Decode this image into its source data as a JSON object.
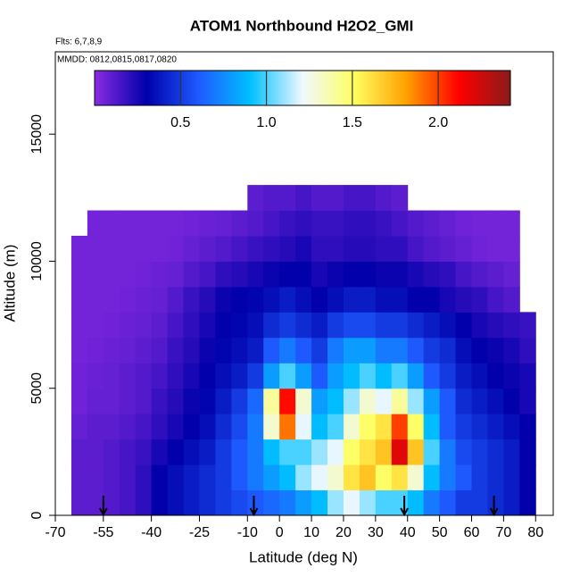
{
  "chart_data": {
    "type": "heatmap",
    "title": "ATOM1 Northbound H2O2_GMI",
    "annotations": [
      "Flts: 6,7,8,9",
      "MMDD: 0812,0815,0817,0820"
    ],
    "xlabel": "Latitude (deg N)",
    "ylabel": "Altitude (m)",
    "xlim": [
      -70,
      85.5
    ],
    "ylim": [
      0,
      18240
    ],
    "xticks": [
      -70,
      -55,
      -40,
      -25,
      -10,
      0,
      10,
      20,
      30,
      40,
      50,
      60,
      70,
      80
    ],
    "yticks": [
      0,
      5000,
      10000,
      15000
    ],
    "lat_bins": [
      -65,
      -60,
      -55,
      -50,
      -45,
      -40,
      -35,
      -30,
      -25,
      -20,
      -15,
      -10,
      -5,
      0,
      5,
      10,
      15,
      20,
      25,
      30,
      35,
      40,
      45,
      50,
      55,
      60,
      65,
      70,
      75,
      80
    ],
    "alt_bins": [
      0,
      1000,
      2000,
      3000,
      4000,
      5000,
      6000,
      7000,
      8000,
      9000,
      10000,
      11000,
      12000,
      13000
    ],
    "values": [
      [
        0.1,
        0.1,
        0.12,
        0.15,
        0.2,
        0.3,
        0.35,
        0.4,
        0.45,
        0.5,
        0.55,
        0.6,
        0.65,
        0.7,
        0.8,
        0.9,
        1.1,
        1.2,
        1.1,
        1.0,
        1.0,
        0.9,
        0.7,
        0.6,
        0.5,
        0.5,
        0.45,
        0.4,
        0.3
      ],
      [
        0.1,
        0.1,
        0.12,
        0.15,
        0.2,
        0.3,
        0.35,
        0.4,
        0.45,
        0.5,
        0.6,
        0.7,
        0.8,
        0.9,
        1.1,
        1.2,
        1.3,
        1.6,
        1.7,
        1.5,
        1.6,
        1.3,
        0.9,
        0.7,
        0.6,
        0.5,
        0.45,
        0.4,
        0.3
      ],
      [
        0.1,
        0.1,
        0.12,
        0.15,
        0.18,
        0.25,
        0.3,
        0.35,
        0.4,
        0.5,
        0.6,
        0.7,
        0.9,
        1.0,
        1.0,
        1.1,
        1.2,
        1.5,
        1.6,
        1.7,
        2.2,
        1.7,
        1.0,
        0.7,
        0.55,
        0.5,
        0.45,
        0.4,
        0.3
      ],
      [
        0.08,
        0.1,
        0.1,
        0.12,
        0.15,
        0.2,
        0.25,
        0.3,
        0.35,
        0.45,
        0.55,
        0.7,
        1.3,
        1.9,
        1.2,
        0.9,
        1.0,
        1.3,
        1.5,
        1.6,
        2.0,
        1.5,
        0.9,
        0.6,
        0.5,
        0.45,
        0.4,
        0.35,
        0.3
      ],
      [
        0.06,
        0.08,
        0.08,
        0.1,
        0.12,
        0.18,
        0.22,
        0.28,
        0.32,
        0.4,
        0.5,
        0.65,
        1.4,
        2.1,
        1.3,
        0.8,
        0.9,
        1.1,
        1.3,
        1.2,
        1.4,
        1.1,
        0.8,
        0.6,
        0.45,
        0.4,
        0.35,
        0.3,
        0.25
      ],
      [
        0.06,
        0.07,
        0.08,
        0.1,
        0.12,
        0.15,
        0.2,
        0.25,
        0.3,
        0.35,
        0.4,
        0.5,
        0.8,
        1.0,
        0.8,
        0.6,
        0.8,
        0.9,
        1.0,
        0.9,
        1.0,
        0.8,
        0.6,
        0.5,
        0.4,
        0.35,
        0.3,
        0.28,
        0.25
      ],
      [
        0.05,
        0.06,
        0.07,
        0.08,
        0.1,
        0.12,
        0.18,
        0.22,
        0.28,
        0.32,
        0.35,
        0.4,
        0.6,
        0.7,
        0.6,
        0.5,
        0.7,
        0.8,
        0.8,
        0.7,
        0.7,
        0.6,
        0.5,
        0.45,
        0.35,
        0.3,
        0.28,
        0.25,
        0.2
      ],
      [
        0.05,
        0.05,
        0.06,
        0.07,
        0.08,
        0.1,
        0.15,
        0.2,
        0.25,
        0.3,
        0.32,
        0.35,
        0.45,
        0.5,
        0.45,
        0.4,
        0.5,
        0.55,
        0.55,
        0.5,
        0.5,
        0.45,
        0.4,
        0.35,
        0.3,
        0.25,
        0.22,
        0.2,
        0.18
      ],
      [
        0.05,
        0.05,
        0.05,
        0.06,
        0.07,
        0.08,
        0.12,
        0.18,
        0.22,
        0.28,
        0.3,
        0.32,
        0.35,
        0.4,
        0.35,
        0.3,
        0.35,
        0.4,
        0.4,
        0.35,
        0.35,
        0.3,
        0.3,
        0.25,
        0.22,
        0.2,
        0.15,
        0.12,
        null
      ],
      [
        0.05,
        0.05,
        0.05,
        0.05,
        0.06,
        0.07,
        0.08,
        0.12,
        0.15,
        0.2,
        0.22,
        0.25,
        0.28,
        0.3,
        0.3,
        0.25,
        0.28,
        0.3,
        0.3,
        0.28,
        0.28,
        0.25,
        0.22,
        0.2,
        0.15,
        0.12,
        0.1,
        0.08,
        null
      ],
      [
        0.05,
        0.05,
        0.05,
        0.05,
        0.05,
        0.05,
        0.06,
        0.08,
        0.1,
        0.12,
        0.15,
        0.18,
        0.2,
        0.22,
        0.25,
        0.2,
        0.2,
        0.22,
        0.22,
        0.2,
        0.2,
        0.15,
        0.12,
        0.1,
        0.08,
        0.06,
        0.05,
        0.05,
        null
      ],
      [
        null,
        0.05,
        0.05,
        0.05,
        0.05,
        0.05,
        0.05,
        0.06,
        0.07,
        0.08,
        0.1,
        0.12,
        0.15,
        0.18,
        0.2,
        0.18,
        0.18,
        0.2,
        0.2,
        0.18,
        0.15,
        0.12,
        0.1,
        0.08,
        0.06,
        0.05,
        0.05,
        0.05,
        null
      ],
      [
        null,
        null,
        null,
        null,
        null,
        null,
        null,
        null,
        null,
        null,
        null,
        0.1,
        0.12,
        0.12,
        0.15,
        0.12,
        0.12,
        0.15,
        0.15,
        0.12,
        0.1,
        null,
        null,
        null,
        null,
        null,
        null,
        null,
        null
      ]
    ],
    "clim": [
      0,
      2.42
    ],
    "cticks": [
      0.5,
      {
        "value": 1,
        "label": "1.0"
      },
      1.5,
      {
        "value": 2,
        "label": "2.0"
      }
    ],
    "colormap": [
      "#8a2be2",
      "#0000aa",
      "#1e5aff",
      "#00c0ff",
      "#f0f8ff",
      "#ffff60",
      "#ffa000",
      "#ff0000",
      "#8b1a1a"
    ],
    "arrows_lat": [
      -55,
      -8,
      39,
      67
    ]
  }
}
